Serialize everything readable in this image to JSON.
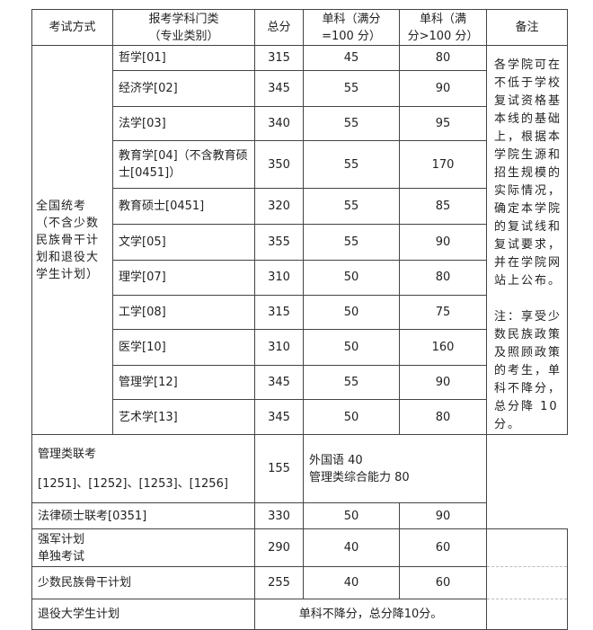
{
  "headers": {
    "method": "考试方式",
    "subject_line1": "报考学科门类",
    "subject_line2": "（专业类别）",
    "total": "总分",
    "single100_line1": "单科（满分",
    "single100_line2": "=100 分）",
    "singleover_line1": "单科（满",
    "singleover_line2": "分>100 分）",
    "remarks": "备注"
  },
  "national": {
    "method": "全国统考（不含少数民族骨干计划和退役大学生计划）",
    "rows": [
      {
        "subject": "哲学[01]",
        "total": "315",
        "s100": "45",
        "sover": "80"
      },
      {
        "subject": "经济学[02]",
        "total": "345",
        "s100": "55",
        "sover": "90"
      },
      {
        "subject": "法学[03]",
        "total": "340",
        "s100": "55",
        "sover": "95"
      },
      {
        "subject": "教育学[04]（不含教育硕士[0451]）",
        "total": "350",
        "s100": "55",
        "sover": "170"
      },
      {
        "subject": "教育硕士[0451]",
        "total": "320",
        "s100": "55",
        "sover": "85"
      },
      {
        "subject": "文学[05]",
        "total": "355",
        "s100": "55",
        "sover": "90"
      },
      {
        "subject": "理学[07]",
        "total": "310",
        "s100": "50",
        "sover": "80"
      },
      {
        "subject": "工学[08]",
        "total": "315",
        "s100": "50",
        "sover": "75"
      },
      {
        "subject": "医学[10]",
        "total": "310",
        "s100": "50",
        "sover": "160"
      },
      {
        "subject": "管理学[12]",
        "total": "345",
        "s100": "55",
        "sover": "90"
      },
      {
        "subject": "艺术学[13]",
        "total": "345",
        "s100": "50",
        "sover": "80"
      }
    ]
  },
  "remarks": {
    "main": "各学院可在不低于学校复试资格基本线的基础上，根据本学院生源和招生规模的实际情况，确定本学院的复试线和复试要求，并在学院网站上公布。",
    "note": "注：享受少数民族政策及照顾政策的考生，单科不降分，总分降 10 分。"
  },
  "management": {
    "label_line1": "管理类联考",
    "label_line2": "[1251]、[1252]、[1253]、[1256]",
    "total": "155",
    "detail_line1": "外国语 40",
    "detail_line2": "管理类综合能力 80"
  },
  "law": {
    "label": "法律硕士联考[0351]",
    "total": "330",
    "s100": "50",
    "sover": "90"
  },
  "military": {
    "label_line1": "强军计划",
    "label_line2": "单独考试",
    "total": "290",
    "s100": "40",
    "sover": "60"
  },
  "minority": {
    "label": "少数民族骨干计划",
    "total": "255",
    "s100": "40",
    "sover": "60"
  },
  "veteran": {
    "label": "退役大学生计划",
    "rule": "单科不降分，总分降10分。"
  }
}
